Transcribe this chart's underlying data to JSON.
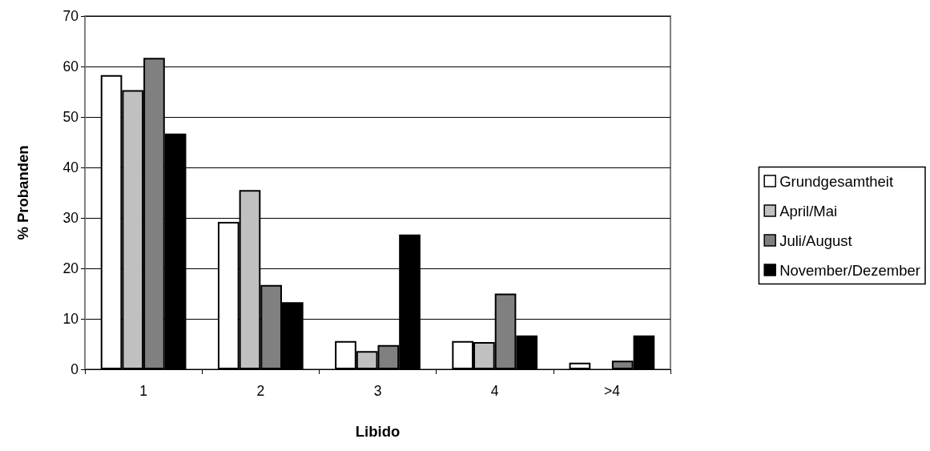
{
  "chart_data": {
    "type": "bar",
    "xlabel": "Libido",
    "ylabel": "% Probanden",
    "categories": [
      "1",
      "2",
      "3",
      "4",
      ">4"
    ],
    "series": [
      {
        "name": "Grundgesamtheit",
        "color": "#ffffff",
        "values": [
          58.3,
          29.2,
          5.6,
          5.6,
          1.3
        ]
      },
      {
        "name": "April/Mai",
        "color": "#c0c0c0",
        "values": [
          55.3,
          35.5,
          3.6,
          5.4,
          null
        ]
      },
      {
        "name": "Juli/August",
        "color": "#808080",
        "values": [
          61.7,
          16.7,
          4.8,
          15,
          1.7
        ]
      },
      {
        "name": "November/Dezember",
        "color": "#000000",
        "values": [
          46.7,
          13.3,
          26.7,
          6.7,
          6.7
        ]
      }
    ],
    "ylim": [
      0,
      70
    ],
    "yticks": [
      0,
      10,
      20,
      30,
      40,
      50,
      60,
      70
    ],
    "grid": "y",
    "legend": "right"
  }
}
